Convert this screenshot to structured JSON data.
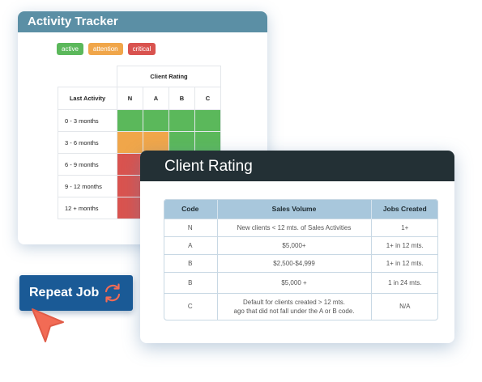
{
  "tracker": {
    "title": "Activity Tracker",
    "legend": [
      "active",
      "attention",
      "critical"
    ],
    "rating_title": "Client Rating",
    "row_header": "Last Activity",
    "codes": [
      "N",
      "A",
      "B",
      "C"
    ],
    "rows": [
      {
        "label": "0 - 3 months",
        "cells": [
          "active",
          "active",
          "active",
          "active"
        ]
      },
      {
        "label": "3 - 6 months",
        "cells": [
          "attention",
          "attention",
          "active",
          "active"
        ]
      },
      {
        "label": "6 - 9 months",
        "cells": [
          "critical",
          "critical",
          "critical",
          "critical"
        ]
      },
      {
        "label": "9 - 12 months",
        "cells": [
          "critical",
          "critical",
          "critical",
          "critical"
        ]
      },
      {
        "label": "12 + months",
        "cells": [
          "critical",
          "critical",
          "critical",
          "critical"
        ]
      }
    ],
    "colors": {
      "active": "#5bb85b",
      "attention": "#f0a64a",
      "critical": "#d9534f",
      "header": "#5b8fa5"
    }
  },
  "rating": {
    "title": "Client Rating",
    "columns": [
      "Code",
      "Sales Volume",
      "Jobs Created"
    ],
    "rows": [
      {
        "code": "N",
        "sales": "New clients < 12 mts. of Sales Activities",
        "jobs": "1+"
      },
      {
        "code": "A",
        "sales": "$5,000+",
        "jobs": "1+ in 12 mts."
      },
      {
        "code": "B",
        "sales": "$2,500-$4,999",
        "jobs": "1+ in 12 mts."
      },
      {
        "code": "B",
        "sales": "$5,000 +",
        "jobs": "1 in 24 mts."
      },
      {
        "code": "C",
        "sales_line1": "Default for clients created > 12 mts.",
        "sales_line2": "ago that did not fall under the A or B code.",
        "jobs": "N/A"
      }
    ],
    "colors": {
      "header": "#233035",
      "table_header": "#a8c7dc"
    }
  },
  "repeat_button": {
    "label": "Repeat Job",
    "icon": "refresh-icon",
    "color": "#1a5a96"
  },
  "cursor": {
    "icon": "pointer-cursor-icon",
    "color": "#f26b55"
  }
}
